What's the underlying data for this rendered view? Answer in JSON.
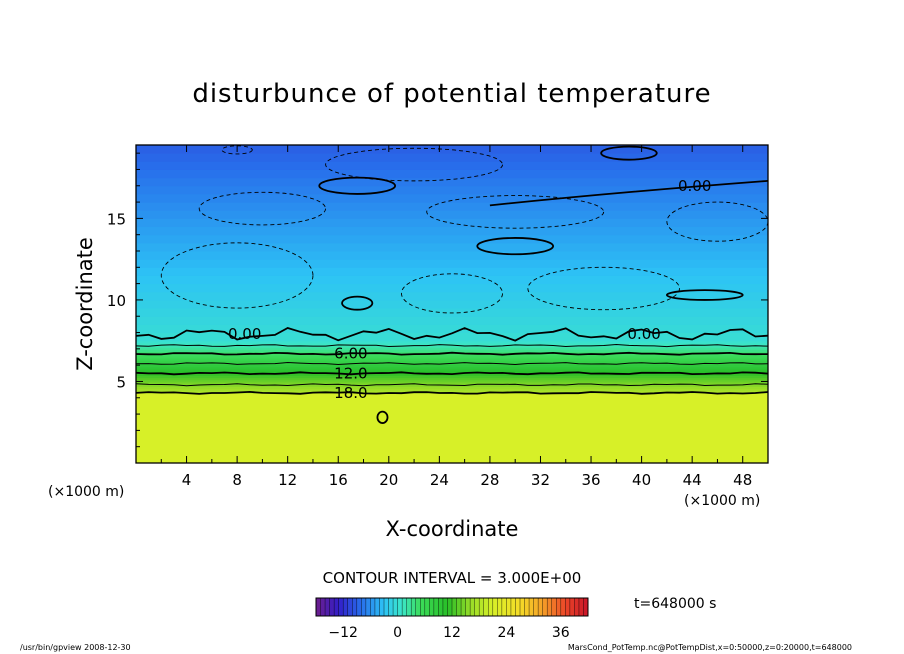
{
  "chart_data": {
    "type": "heatmap",
    "title": "disturbunce of potential temperature",
    "xlabel": "X-coordinate",
    "ylabel": "Z-coordinate",
    "x_unit_left": "(×1000 m)",
    "x_unit_right": "(×1000 m)",
    "xlim": [
      0,
      50
    ],
    "ylim": [
      0,
      19.5
    ],
    "x_ticks": [
      4,
      8,
      12,
      16,
      20,
      24,
      28,
      32,
      36,
      40,
      44,
      48
    ],
    "y_ticks": [
      5,
      10,
      15
    ],
    "contour_interval_text": "CONTOUR INTERVAL = 3.000E+00",
    "contour_labels": [
      {
        "text": "0.00",
        "x": 44.2,
        "z": 17.0
      },
      {
        "text": "0.00",
        "x": 8.6,
        "z": 7.9
      },
      {
        "text": "0.00",
        "x": 40.2,
        "z": 7.9
      },
      {
        "text": "6.00",
        "x": 17.0,
        "z": 6.7
      },
      {
        "text": "12.0",
        "x": 17.0,
        "z": 5.5
      },
      {
        "text": "18.0",
        "x": 17.0,
        "z": 4.3
      }
    ],
    "field_summary": [
      {
        "z_range": [
          0,
          4.3
        ],
        "value": 21
      },
      {
        "z_range": [
          4.3,
          7.5
        ],
        "value_from": 18,
        "value_to": 0
      },
      {
        "z_range": [
          7.5,
          19.5
        ],
        "value_from": 0,
        "value_to": -9
      }
    ],
    "colorbar": {
      "ticks": [
        -12,
        0,
        12,
        24,
        36
      ],
      "range": [
        -18,
        42
      ]
    },
    "time_label": "t=648000 s",
    "footer_left": "/usr/bin/gpview   2008-12-30",
    "footer_right": "MarsCond_PotTemp.nc@PotTempDist,x=0:50000,z=0:20000,t=648000"
  }
}
